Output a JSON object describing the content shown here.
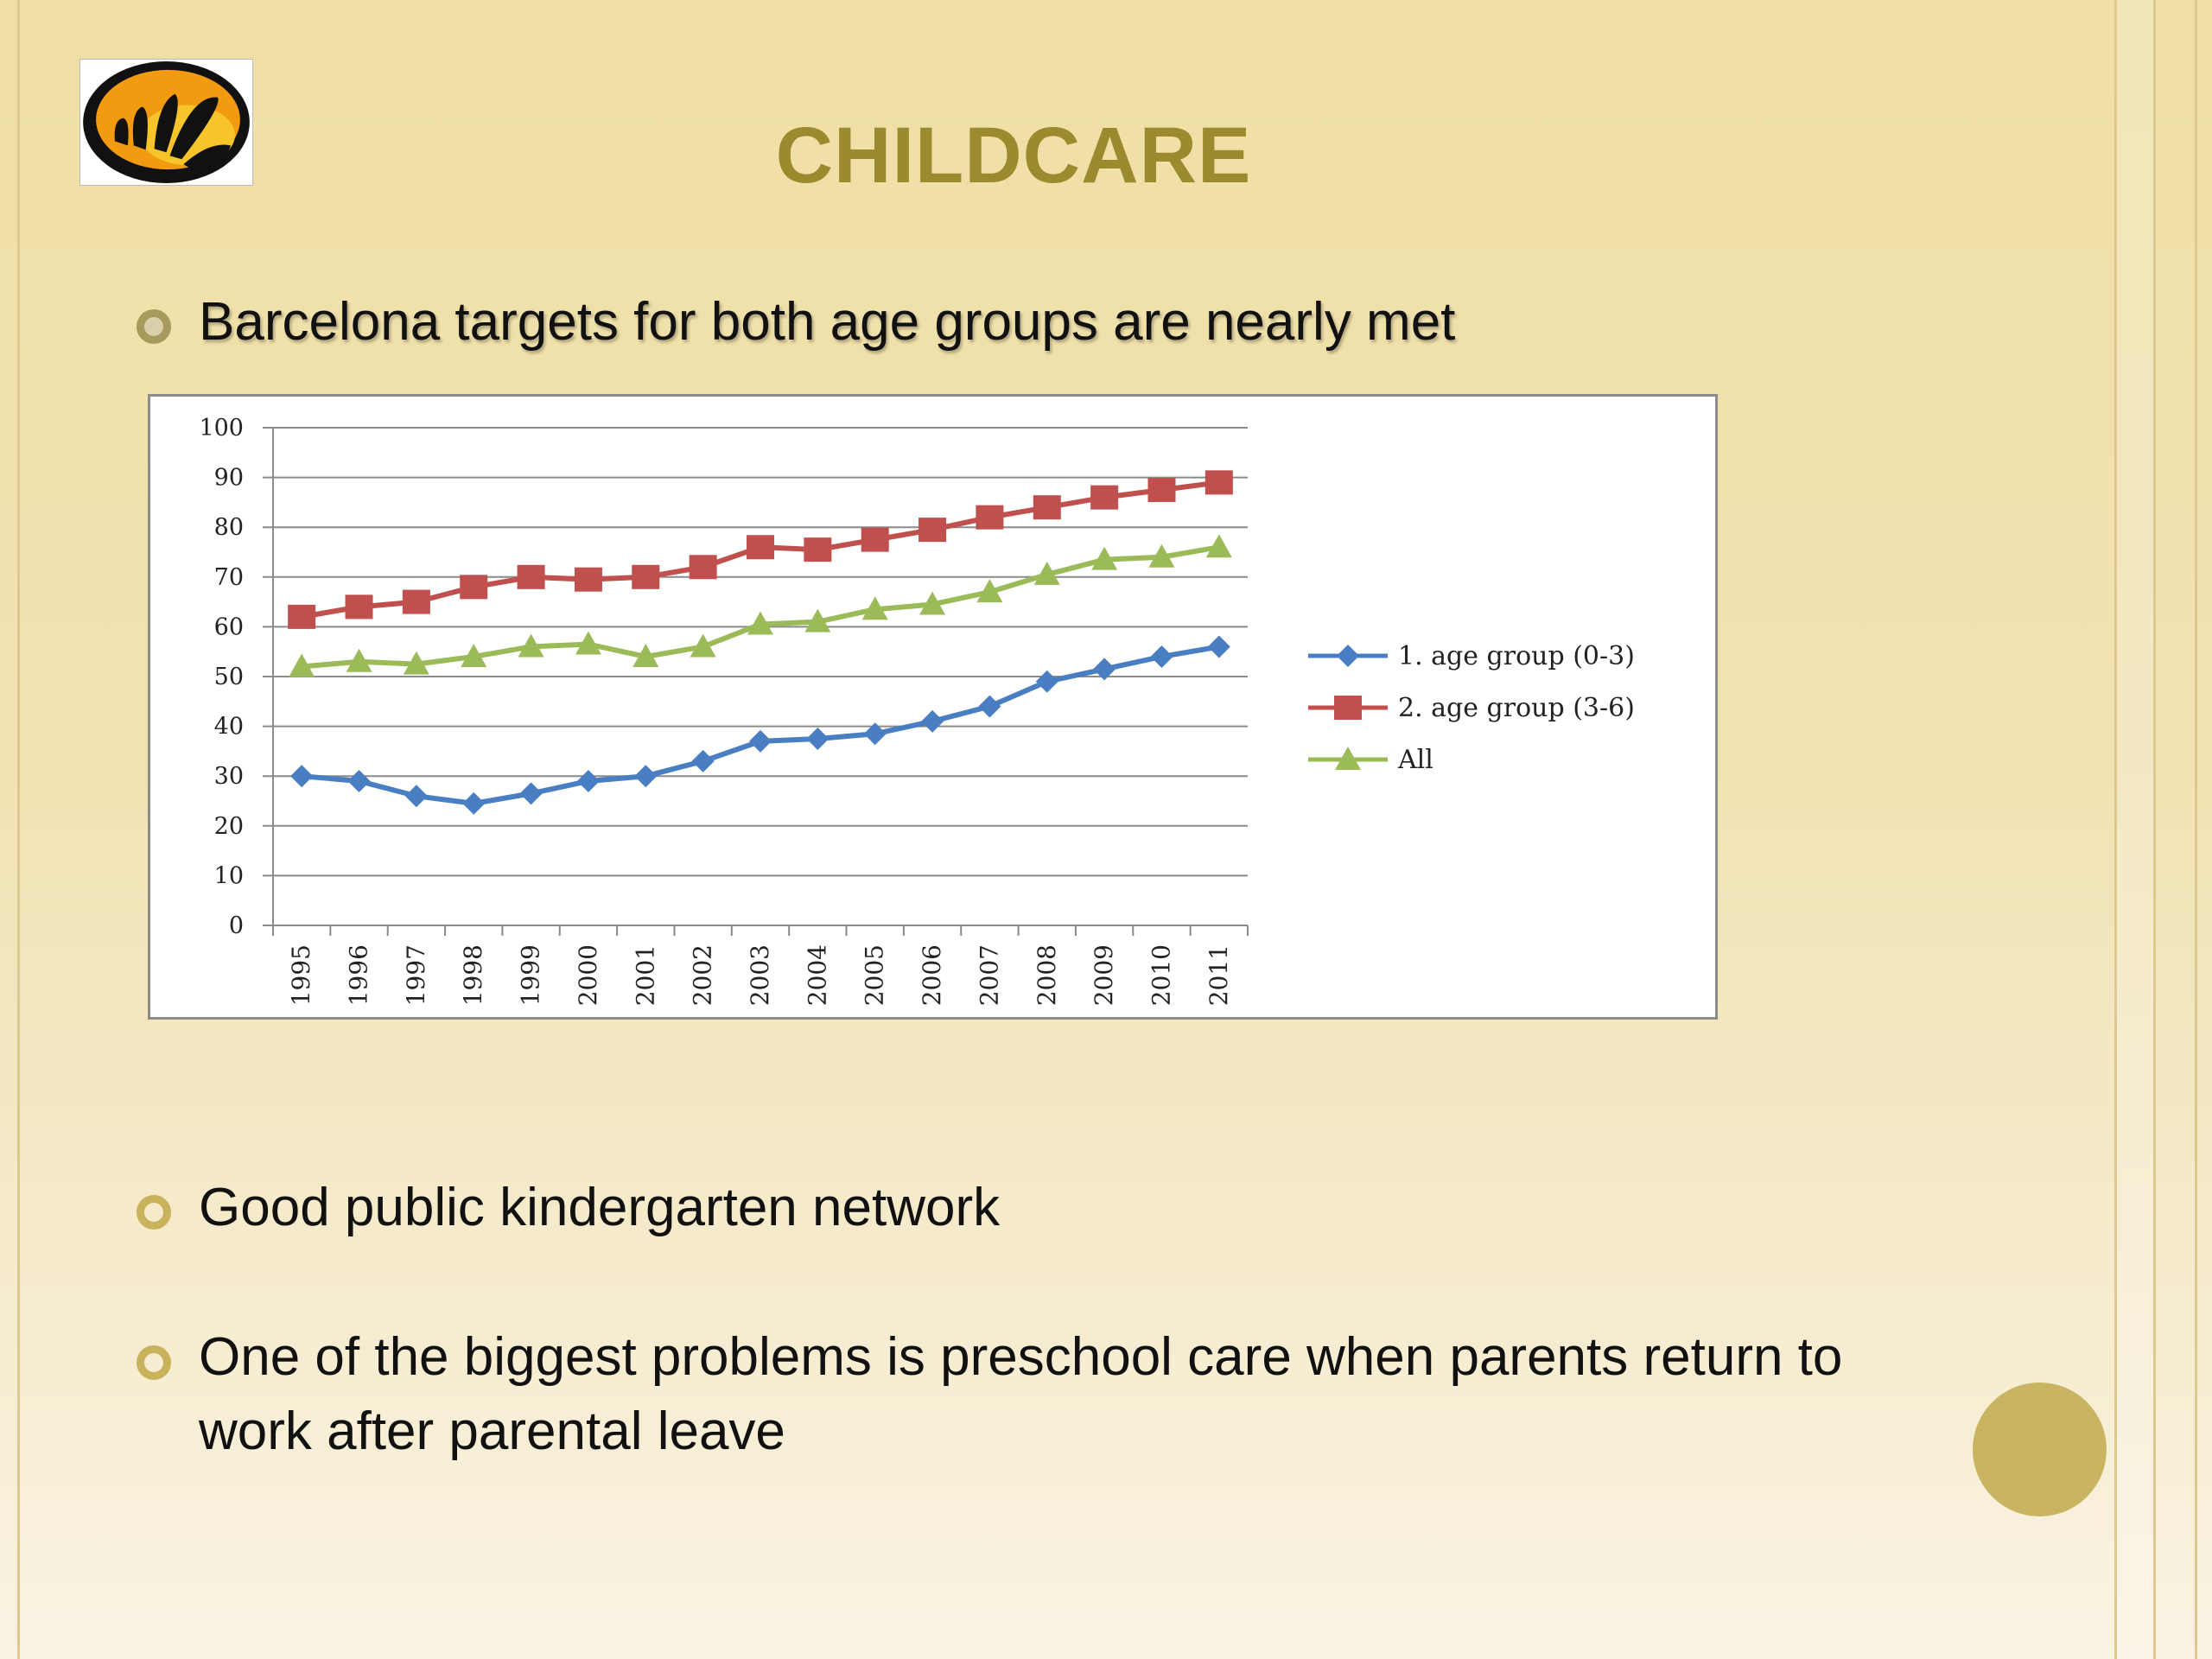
{
  "slide": {
    "title": "CHILDCARE",
    "bullets": [
      "Barcelona targets for both age groups are nearly met",
      "Good public kindergarten network",
      "One of the biggest problems is preschool care when parents return to work after parental leave"
    ],
    "logo_icon": "hand-logo-icon",
    "colors": {
      "title": "#9b8a2e",
      "bullet": "#c8b25c",
      "accent_circle": "#c9b462"
    }
  },
  "chart_data": {
    "type": "line",
    "title": "",
    "xlabel": "",
    "ylabel": "",
    "categories": [
      "1995",
      "1996",
      "1997",
      "1998",
      "1999",
      "2000",
      "2001",
      "2002",
      "2003",
      "2004",
      "2005",
      "2006",
      "2007",
      "2008",
      "2009",
      "2010",
      "2011"
    ],
    "ylim": [
      0,
      100
    ],
    "yticks": [
      0,
      10,
      20,
      30,
      40,
      50,
      60,
      70,
      80,
      90,
      100
    ],
    "grid": true,
    "legend_position": "right",
    "series": [
      {
        "name": "1. age group (0-3)",
        "color": "#4a7ec2",
        "marker": "diamond",
        "values": [
          30,
          29,
          26,
          24.5,
          26.5,
          29,
          30,
          33,
          37,
          37.5,
          38.5,
          41,
          44,
          49,
          51.5,
          54,
          56
        ]
      },
      {
        "name": "2. age group (3-6)",
        "color": "#c0504d",
        "marker": "square",
        "values": [
          62,
          64,
          65,
          68,
          70,
          69.5,
          70,
          72,
          76,
          75.5,
          77.5,
          79.5,
          82,
          84,
          86,
          87.5,
          89
        ]
      },
      {
        "name": "All",
        "color": "#9bbb59",
        "marker": "triangle",
        "values": [
          52,
          53,
          52.5,
          54,
          56,
          56.5,
          54,
          56,
          60.5,
          61,
          63.5,
          64.5,
          67,
          70.5,
          73.5,
          74,
          76
        ]
      }
    ]
  }
}
